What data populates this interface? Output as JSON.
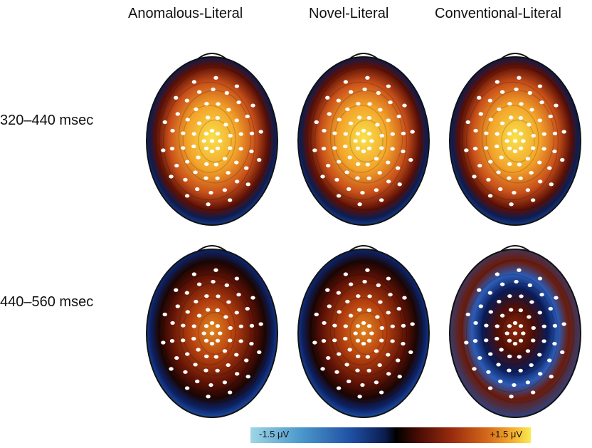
{
  "column_titles": [
    "Anomalous-Literal",
    "Novel-Literal",
    "Conventional-Literal"
  ],
  "row_labels": [
    "320–440 msec",
    "440–560 msec"
  ],
  "colorbar": {
    "min_label": "-1.5 μV",
    "max_label": "+1.5 μV",
    "stops": [
      "#9fd6e6",
      "#4c98cc",
      "#1f4fa3",
      "#0b1c4e",
      "#000000",
      "#4a0c05",
      "#9a2c0e",
      "#d4661a",
      "#f5a92a",
      "#f9ec52"
    ]
  },
  "maps": [
    {
      "row": 0,
      "col": 0,
      "level": 0.78
    },
    {
      "row": 0,
      "col": 1,
      "level": 0.85
    },
    {
      "row": 0,
      "col": 2,
      "level": 0.8
    },
    {
      "row": 1,
      "col": 0,
      "level": 0.6
    },
    {
      "row": 1,
      "col": 1,
      "level": 0.62
    },
    {
      "row": 1,
      "col": 2,
      "level": 0.45
    }
  ]
}
